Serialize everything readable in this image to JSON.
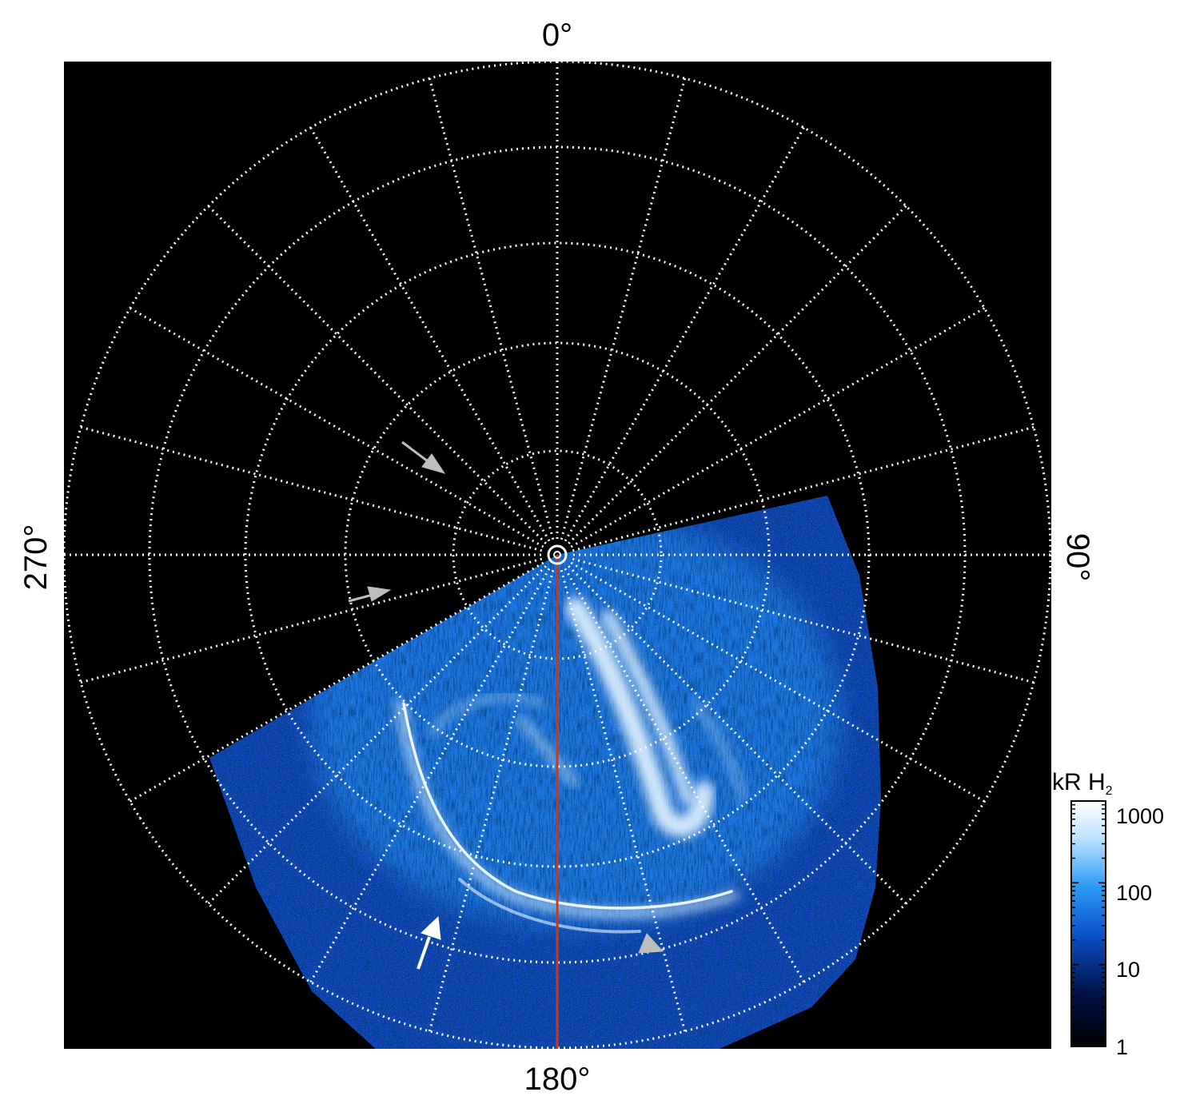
{
  "labels": {
    "top": "0°",
    "bottom": "180°",
    "left": "270°",
    "right": "90°"
  },
  "colorbar": {
    "unit": "kR H",
    "unit_subscript": "2",
    "ticks": [
      "1000",
      "100",
      "10",
      "1"
    ],
    "colors": [
      "#000000",
      "#00124a",
      "#0a4fc8",
      "#2a9bf5",
      "#bfe3ff",
      "#ffffff"
    ]
  },
  "overlay": {
    "grid_color": "#ffffff",
    "meridian_color": "#c8381d",
    "arrow_white": "#ffffff",
    "arrow_gray": "#bdbdbd"
  }
}
